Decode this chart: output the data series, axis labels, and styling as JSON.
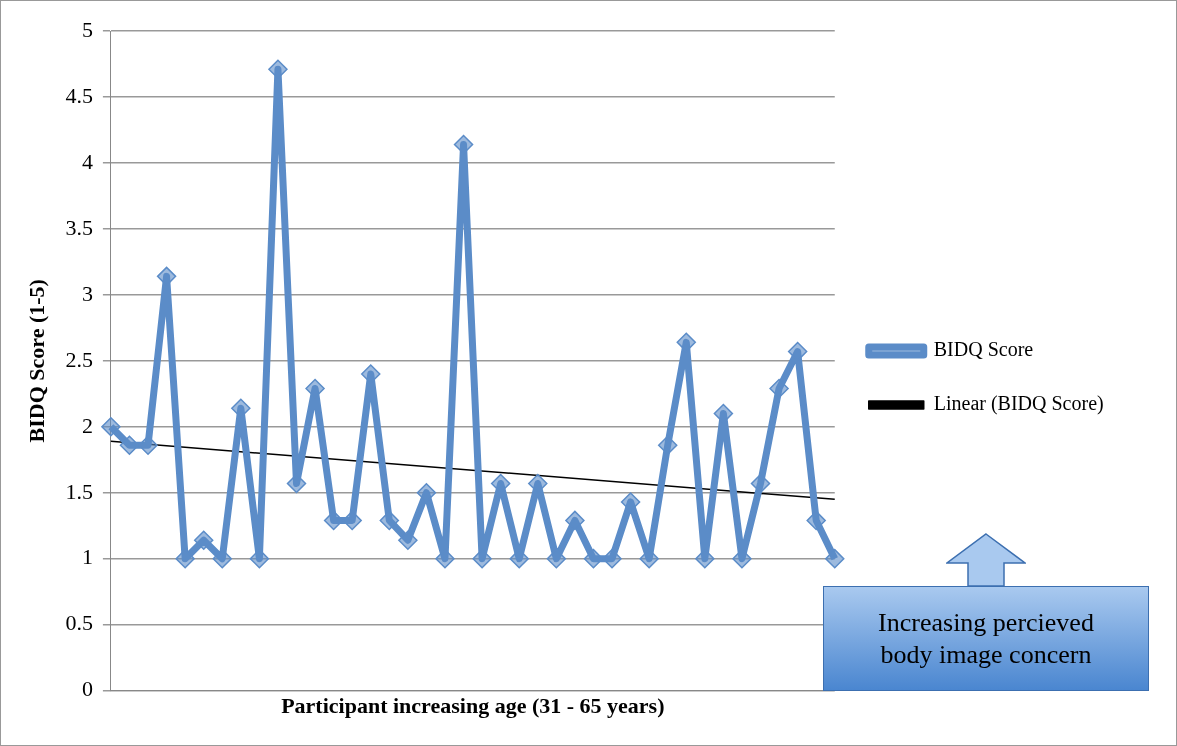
{
  "chart_data": {
    "type": "line",
    "xlabel": "Participant increasing age (31 - 65 years)",
    "ylabel": "BIDQ Score (1-5)",
    "categories": [
      null,
      null,
      null,
      null,
      null,
      null,
      null,
      null,
      null,
      null,
      null,
      null,
      null,
      null,
      null,
      null,
      null,
      null,
      null,
      null,
      null,
      null,
      null,
      null,
      null,
      null,
      null,
      null,
      null,
      null,
      null,
      null,
      null,
      null,
      null,
      null,
      null,
      null,
      null,
      null
    ],
    "series": [
      {
        "name": "BIDQ Score",
        "color": "#5b8cc8",
        "marker": "diamond",
        "values": [
          2.0,
          1.86,
          1.86,
          3.14,
          1.0,
          1.14,
          1.0,
          2.14,
          1.0,
          4.71,
          1.57,
          2.29,
          1.29,
          1.29,
          2.4,
          1.29,
          1.14,
          1.5,
          1.0,
          4.14,
          1.0,
          1.57,
          1.0,
          1.57,
          1.0,
          1.29,
          1.0,
          1.0,
          1.43,
          1.0,
          1.86,
          2.64,
          1.0,
          2.1,
          1.0,
          1.57,
          2.29,
          2.57,
          1.29,
          1.0
        ]
      },
      {
        "name": "Linear (BIDQ Score)",
        "color": "#000000",
        "marker": "none",
        "values": [
          1.89,
          null,
          null,
          null,
          null,
          null,
          null,
          null,
          null,
          null,
          null,
          null,
          null,
          null,
          null,
          null,
          null,
          null,
          null,
          null,
          null,
          null,
          null,
          null,
          null,
          null,
          null,
          null,
          null,
          null,
          null,
          null,
          null,
          null,
          null,
          null,
          null,
          null,
          null,
          1.45
        ]
      }
    ],
    "ylim": [
      0,
      5
    ],
    "yticks": [
      0,
      0.5,
      1,
      1.5,
      2,
      2.5,
      3,
      3.5,
      4,
      4.5,
      5
    ],
    "grid": "y",
    "legend": "right",
    "annotations": [
      "Increasing percieved body image concern"
    ]
  }
}
